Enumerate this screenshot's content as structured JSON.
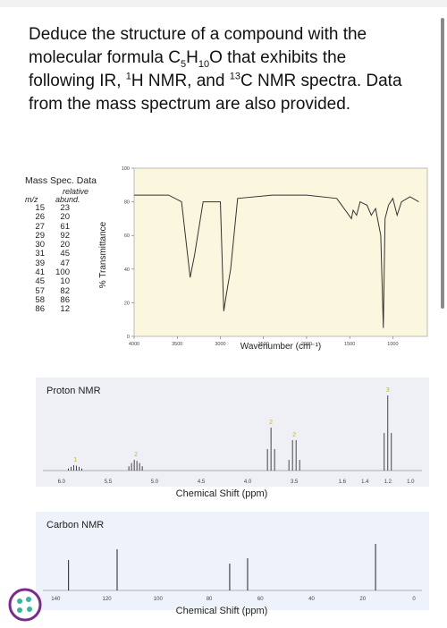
{
  "question": {
    "part1": "Deduce the structure of a compound with the",
    "part2_pre": "molecular formula C",
    "sub1": "5",
    "h": "H",
    "sub2": "10",
    "o_rest": "O that exhibits the",
    "part3_pre": "following IR, ",
    "sup1": "1",
    "hnmr": "H NMR, and ",
    "sup2": "13",
    "cnmr": "C NMR spectra. Data",
    "part4": "from the mass spectrum are also provided."
  },
  "mass_spec": {
    "title": "Mass Spec. Data",
    "header_relative": "relative",
    "header_mz": "m/z",
    "header_abund": "abund.",
    "rows": [
      {
        "mz": "15",
        "abund": "23"
      },
      {
        "mz": "26",
        "abund": "20"
      },
      {
        "mz": "27",
        "abund": "61"
      },
      {
        "mz": "29",
        "abund": "92"
      },
      {
        "mz": "30",
        "abund": "20"
      },
      {
        "mz": "31",
        "abund": "45"
      },
      {
        "mz": "39",
        "abund": "47"
      },
      {
        "mz": "41",
        "abund": "100"
      },
      {
        "mz": "45",
        "abund": "10"
      },
      {
        "mz": "57",
        "abund": "82"
      },
      {
        "mz": "58",
        "abund": "86"
      },
      {
        "mz": "86",
        "abund": "12"
      }
    ]
  },
  "ir": {
    "ylabel": "% Transmittance",
    "xlabel": "Wavenumber (cm⁻¹)",
    "y_ticks": [
      "0",
      "20",
      "40",
      "60",
      "80",
      "100"
    ],
    "x_ticks": [
      "4000",
      "3500",
      "3000",
      "2500",
      "2000",
      "1500",
      "1000"
    ],
    "bg_color": "#fbf7de",
    "line_color": "#333333"
  },
  "hnmr": {
    "title": "Proton NMR",
    "xlabel": "Chemical Shift (ppm)",
    "x_ticks": [
      "6.0",
      "5.5",
      "5.0",
      "4.5",
      "4.0",
      "3.5"
    ],
    "x_ticks_right": [
      "1.6",
      "1.4",
      "1.2",
      "1.0"
    ],
    "peak_labels": [
      "1",
      "2",
      "2",
      "2",
      "3"
    ],
    "bg_color": "#eef0f5",
    "line_color": "#333333",
    "label_color": "#d4b800"
  },
  "cnmr": {
    "title": "Carbon NMR",
    "xlabel": "Chemical Shift (ppm)",
    "x_ticks": [
      "140",
      "120",
      "100",
      "80",
      "60",
      "40",
      "20",
      "0"
    ],
    "bg_color": "#eef3fb",
    "line_color": "#333333"
  },
  "chart_data": [
    {
      "type": "line",
      "title": "",
      "xlabel": "Wavenumber (cm⁻¹)",
      "ylabel": "% Transmittance",
      "xlim": [
        4000,
        600
      ],
      "ylim": [
        0,
        100
      ],
      "x": [
        4000,
        3600,
        3450,
        3350,
        3300,
        3200,
        3000,
        2960,
        2930,
        2880,
        2800,
        2400,
        2000,
        1650,
        1480,
        1460,
        1420,
        1380,
        1300,
        1250,
        1200,
        1140,
        1110,
        1090,
        1050,
        1000,
        950,
        900,
        800,
        700
      ],
      "series": [
        {
          "values": [
            84,
            84,
            80,
            35,
            48,
            80,
            80,
            15,
            25,
            40,
            82,
            84,
            84,
            82,
            70,
            75,
            72,
            80,
            78,
            72,
            76,
            60,
            5,
            70,
            78,
            82,
            72,
            80,
            83,
            80
          ]
        }
      ]
    },
    {
      "type": "line",
      "title": "Proton NMR",
      "xlabel": "Chemical Shift (ppm)",
      "peaks": [
        {
          "shift": 5.85,
          "integration": 1,
          "type": "multiplet"
        },
        {
          "shift": 5.2,
          "integration": 2,
          "type": "multiplet"
        },
        {
          "shift": 3.75,
          "integration": 2,
          "type": "triplet"
        },
        {
          "shift": 3.5,
          "integration": 2,
          "type": "quartet"
        },
        {
          "shift": 1.2,
          "integration": 3,
          "type": "triplet"
        }
      ]
    },
    {
      "type": "line",
      "title": "Carbon NMR",
      "xlabel": "Chemical Shift (ppm)",
      "xlim": [
        145,
        0
      ],
      "peaks": [
        135,
        116,
        72,
        65,
        15
      ]
    }
  ]
}
